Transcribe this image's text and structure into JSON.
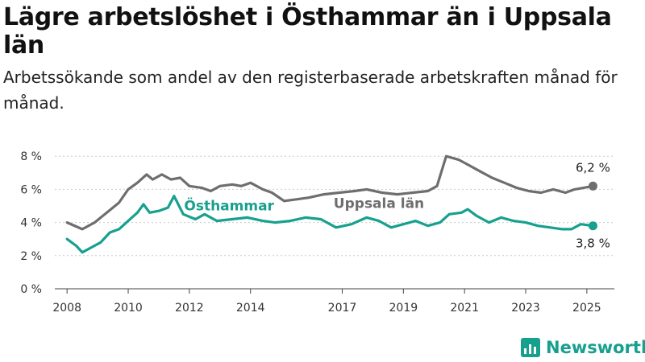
{
  "title": "Lägre arbetslöshet i Östhammar än i Uppsala län",
  "subtitle": "Arbetssökande som andel av den registerbaserade arbetskraften månad för månad.",
  "brand": {
    "name": "Newsworthy",
    "icon": "newsworthy-logo-icon"
  },
  "colors": {
    "ostHammar": "#17a08e",
    "uppsala": "#6e6e70",
    "grid": "#cccccc"
  },
  "chart_data": {
    "type": "line",
    "title": "Lägre arbetslöshet i Östhammar än i Uppsala län",
    "xlabel": "",
    "ylabel": "",
    "xlim": [
      2007.6,
      2025.9
    ],
    "ylim": [
      0,
      8.4
    ],
    "yticks": [
      {
        "value": 0,
        "label": "0 %"
      },
      {
        "value": 2,
        "label": "2 %"
      },
      {
        "value": 4,
        "label": "4 %"
      },
      {
        "value": 6,
        "label": "6 %"
      },
      {
        "value": 8,
        "label": "8 %"
      }
    ],
    "xticks": [
      {
        "value": 2008,
        "label": "2008"
      },
      {
        "value": 2010,
        "label": "2010"
      },
      {
        "value": 2012,
        "label": "2012"
      },
      {
        "value": 2014,
        "label": "2014"
      },
      {
        "value": 2017,
        "label": "2017"
      },
      {
        "value": 2019,
        "label": "2019"
      },
      {
        "value": 2021,
        "label": "2021"
      },
      {
        "value": 2023,
        "label": "2023"
      },
      {
        "value": 2025,
        "label": "2025"
      }
    ],
    "grid": "horizontal",
    "legend": "direct labels on lines",
    "series": [
      {
        "name": "Uppsala län",
        "color": "#6e6e70",
        "end_label": "6,2 %",
        "points": [
          [
            2008.0,
            4.0
          ],
          [
            2008.5,
            3.6
          ],
          [
            2008.9,
            4.0
          ],
          [
            2009.3,
            4.6
          ],
          [
            2009.7,
            5.2
          ],
          [
            2010.0,
            6.0
          ],
          [
            2010.3,
            6.4
          ],
          [
            2010.6,
            6.9
          ],
          [
            2010.8,
            6.6
          ],
          [
            2011.1,
            6.9
          ],
          [
            2011.4,
            6.6
          ],
          [
            2011.7,
            6.7
          ],
          [
            2012.0,
            6.2
          ],
          [
            2012.4,
            6.1
          ],
          [
            2012.7,
            5.9
          ],
          [
            2013.0,
            6.2
          ],
          [
            2013.4,
            6.3
          ],
          [
            2013.7,
            6.2
          ],
          [
            2014.0,
            6.4
          ],
          [
            2014.4,
            6.0
          ],
          [
            2014.7,
            5.8
          ],
          [
            2015.1,
            5.3
          ],
          [
            2015.5,
            5.4
          ],
          [
            2015.9,
            5.5
          ],
          [
            2016.4,
            5.7
          ],
          [
            2016.9,
            5.8
          ],
          [
            2017.4,
            5.9
          ],
          [
            2017.8,
            6.0
          ],
          [
            2018.3,
            5.8
          ],
          [
            2018.8,
            5.7
          ],
          [
            2019.3,
            5.8
          ],
          [
            2019.8,
            5.9
          ],
          [
            2020.1,
            6.2
          ],
          [
            2020.4,
            8.0
          ],
          [
            2020.8,
            7.8
          ],
          [
            2021.1,
            7.5
          ],
          [
            2021.5,
            7.1
          ],
          [
            2021.9,
            6.7
          ],
          [
            2022.3,
            6.4
          ],
          [
            2022.7,
            6.1
          ],
          [
            2023.1,
            5.9
          ],
          [
            2023.5,
            5.8
          ],
          [
            2023.9,
            6.0
          ],
          [
            2024.3,
            5.8
          ],
          [
            2024.6,
            6.0
          ],
          [
            2024.9,
            6.1
          ],
          [
            2025.2,
            6.2
          ]
        ]
      },
      {
        "name": "Östhammar",
        "color": "#17a08e",
        "end_label": "3,8 %",
        "points": [
          [
            2008.0,
            3.0
          ],
          [
            2008.3,
            2.6
          ],
          [
            2008.5,
            2.2
          ],
          [
            2008.8,
            2.5
          ],
          [
            2009.1,
            2.8
          ],
          [
            2009.4,
            3.4
          ],
          [
            2009.7,
            3.6
          ],
          [
            2010.0,
            4.1
          ],
          [
            2010.3,
            4.6
          ],
          [
            2010.5,
            5.1
          ],
          [
            2010.7,
            4.6
          ],
          [
            2011.0,
            4.7
          ],
          [
            2011.3,
            4.9
          ],
          [
            2011.5,
            5.6
          ],
          [
            2011.8,
            4.5
          ],
          [
            2012.2,
            4.2
          ],
          [
            2012.5,
            4.5
          ],
          [
            2012.9,
            4.1
          ],
          [
            2013.4,
            4.2
          ],
          [
            2013.9,
            4.3
          ],
          [
            2014.4,
            4.1
          ],
          [
            2014.8,
            4.0
          ],
          [
            2015.3,
            4.1
          ],
          [
            2015.8,
            4.3
          ],
          [
            2016.3,
            4.2
          ],
          [
            2016.8,
            3.7
          ],
          [
            2017.3,
            3.9
          ],
          [
            2017.8,
            4.3
          ],
          [
            2018.2,
            4.1
          ],
          [
            2018.6,
            3.7
          ],
          [
            2019.0,
            3.9
          ],
          [
            2019.4,
            4.1
          ],
          [
            2019.8,
            3.8
          ],
          [
            2020.2,
            4.0
          ],
          [
            2020.5,
            4.5
          ],
          [
            2020.9,
            4.6
          ],
          [
            2021.1,
            4.8
          ],
          [
            2021.4,
            4.4
          ],
          [
            2021.8,
            4.0
          ],
          [
            2022.2,
            4.3
          ],
          [
            2022.6,
            4.1
          ],
          [
            2023.0,
            4.0
          ],
          [
            2023.4,
            3.8
          ],
          [
            2023.8,
            3.7
          ],
          [
            2024.2,
            3.6
          ],
          [
            2024.5,
            3.6
          ],
          [
            2024.8,
            3.9
          ],
          [
            2025.2,
            3.8
          ]
        ]
      }
    ],
    "annotations": [
      {
        "text": "Uppsala län",
        "series": "Uppsala län"
      },
      {
        "text": "Östhammar",
        "series": "Östhammar"
      }
    ]
  }
}
